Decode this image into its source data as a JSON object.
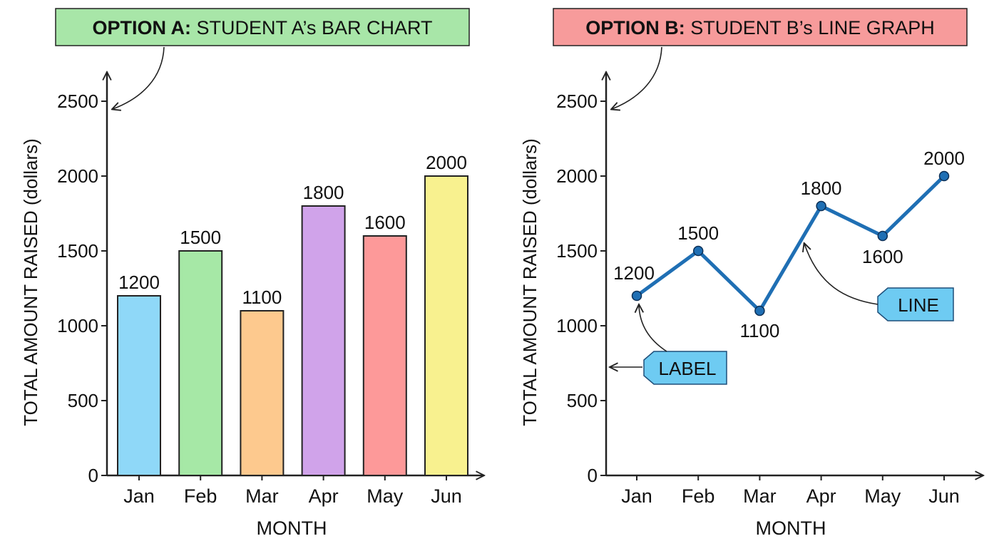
{
  "chart_data": [
    {
      "type": "bar",
      "title_prefix": "OPTION A:",
      "title_rest": " STUDENT A’s BAR CHART",
      "title_color": "#a8e6a8",
      "xlabel": "MONTH",
      "ylabel": "TOTAL AMOUNT RAISED (dollars)",
      "ylim": [
        0,
        2500
      ],
      "yticks": [
        "0",
        "500",
        "1000",
        "1500",
        "2000",
        "2500"
      ],
      "categories": [
        "Jan",
        "Feb",
        "Mar",
        "Apr",
        "May",
        "Jun"
      ],
      "values": [
        1200,
        1500,
        1100,
        1800,
        1600,
        2000
      ],
      "data_labels": [
        "1200",
        "1500",
        "1100",
        "1800",
        "1600",
        "2000"
      ],
      "colors": [
        "#8fd8f8",
        "#a6e8a6",
        "#fdc98e",
        "#d0a3ea",
        "#fd9999",
        "#f8f18f"
      ]
    },
    {
      "type": "line",
      "title_prefix": "OPTION B:",
      "title_rest": " STUDENT B’s LINE GRAPH",
      "title_color": "#f79b9b",
      "xlabel": "MONTH",
      "ylabel": "TOTAL AMOUNT RAISED (dollars)",
      "ylim": [
        0,
        2500
      ],
      "yticks": [
        "0",
        "500",
        "1000",
        "1500",
        "2000",
        "2500"
      ],
      "categories": [
        "Jan",
        "Feb",
        "Mar",
        "Apr",
        "May",
        "Jun"
      ],
      "values": [
        1200,
        1500,
        1100,
        1800,
        1600,
        2000
      ],
      "data_labels": [
        "1200",
        "1500",
        "1100",
        "1800",
        "1600",
        "2000"
      ],
      "line_color": "#1f6fb4",
      "callouts": [
        "LABEL",
        "LINE"
      ],
      "callout_color": "#6ecbf2"
    }
  ]
}
